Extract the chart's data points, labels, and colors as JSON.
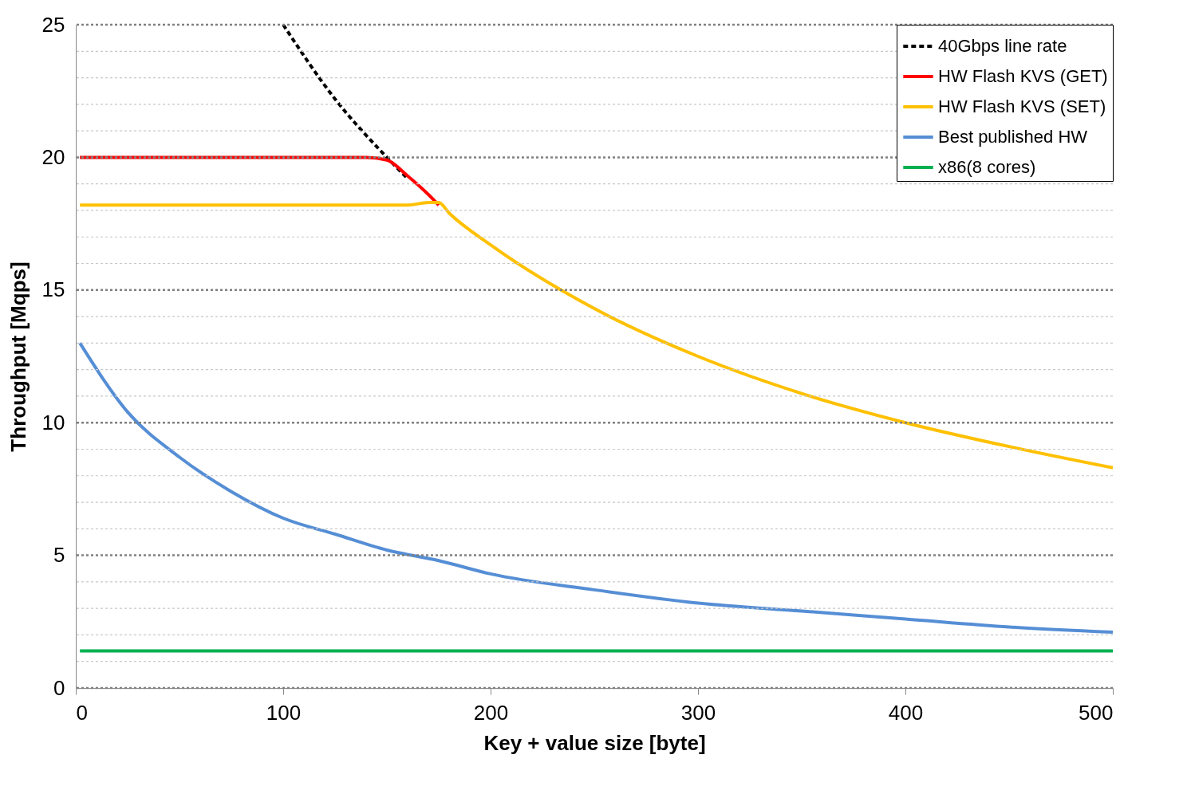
{
  "chart_data": {
    "type": "line",
    "xlabel": "Key + value size [byte]",
    "ylabel": "Throughput  [Mqps]",
    "xlim": [
      0,
      500
    ],
    "xticks": [
      0,
      100,
      200,
      300,
      400,
      500
    ],
    "ylim": [
      0,
      25
    ],
    "yticks": [
      0,
      {
        "value": 1,
        "label": null
      },
      {
        "value": 2,
        "label": null
      },
      {
        "value": 3,
        "label": null
      },
      {
        "value": 4,
        "label": null
      },
      5,
      {
        "value": 6,
        "label": null
      },
      {
        "value": 7,
        "label": null
      },
      {
        "value": 8,
        "label": null
      },
      {
        "value": 9,
        "label": null
      },
      10,
      {
        "value": 11,
        "label": null
      },
      {
        "value": 12,
        "label": null
      },
      {
        "value": 13,
        "label": null
      },
      {
        "value": 14,
        "label": null
      },
      15,
      {
        "value": 16,
        "label": null
      },
      {
        "value": 17,
        "label": null
      },
      {
        "value": 18,
        "label": null
      },
      {
        "value": 19,
        "label": null
      },
      20,
      {
        "value": 21,
        "label": null
      },
      {
        "value": 22,
        "label": null
      },
      {
        "value": 23,
        "label": null
      },
      {
        "value": 24,
        "label": null
      },
      25
    ],
    "grid": "y",
    "legend": "top right",
    "marker": "none",
    "series": [
      {
        "name": "40Gbps line rate",
        "color": "#000000",
        "line_style": "dashed",
        "x": [
          100,
          125,
          150,
          160
        ],
        "values": [
          25,
          22.2,
          20,
          19.2
        ]
      },
      {
        "name": "HW Flash KVS (GET)",
        "color": "#ff0000",
        "x": [
          2,
          130,
          140,
          150,
          160,
          170,
          175
        ],
        "values": [
          20,
          20,
          20,
          19.9,
          19.3,
          18.6,
          18.2
        ]
      },
      {
        "name": "HW Flash KVS (SET)",
        "color": "#ffc000",
        "x": [
          2,
          160,
          170,
          175,
          180,
          200,
          250,
          300,
          350,
          400,
          450,
          500
        ],
        "values": [
          18.2,
          18.2,
          18.3,
          18.3,
          17.9,
          16.7,
          14.3,
          12.5,
          11.1,
          10.0,
          9.1,
          8.3
        ]
      },
      {
        "name": "Best published HW",
        "color": "#558ed5",
        "x": [
          2,
          25,
          50,
          75,
          100,
          125,
          150,
          175,
          200,
          250,
          300,
          350,
          400,
          450,
          500
        ],
        "values": [
          13,
          10.4,
          8.7,
          7.4,
          6.4,
          5.8,
          5.2,
          4.8,
          4.3,
          3.7,
          3.2,
          2.9,
          2.6,
          2.3,
          2.1
        ]
      },
      {
        "name": "x86(8 cores)",
        "color": "#00b050",
        "x": [
          2,
          500
        ],
        "values": [
          1.4,
          1.4
        ]
      }
    ]
  }
}
